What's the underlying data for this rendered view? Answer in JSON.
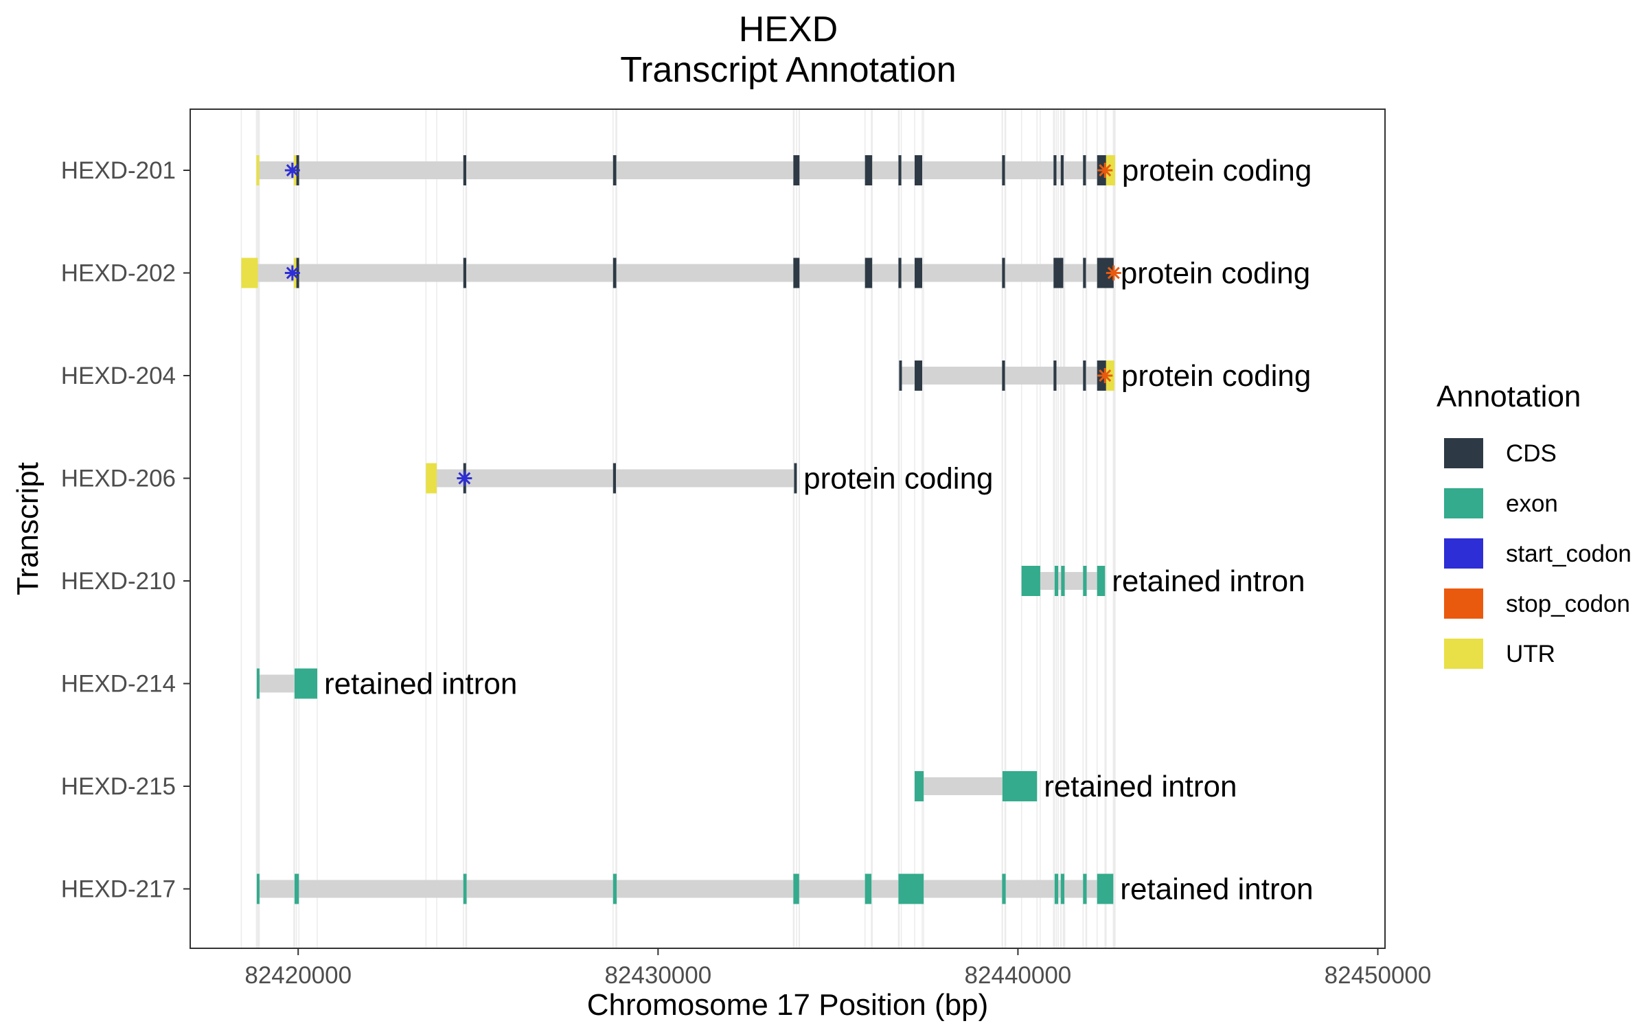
{
  "chart_data": {
    "type": "transcript-annotation",
    "title": "HEXD",
    "subtitle": "Transcript Annotation",
    "xlabel": "Chromosome 17 Position (bp)",
    "ylabel": "Transcript",
    "xlim": [
      82417000,
      82450200
    ],
    "x_ticks": [
      82420000,
      82430000,
      82440000,
      82450000
    ],
    "x_tick_labels": [
      "82420000",
      "82430000",
      "82440000",
      "82450000"
    ],
    "grid": "vertical lines at feature boundaries",
    "legend": {
      "title": "Annotation",
      "placement": "right",
      "items": [
        {
          "label": "CDS",
          "color": "#2d3a45"
        },
        {
          "label": "exon",
          "color": "#33ab8c"
        },
        {
          "label": "start_codon",
          "color": "#2e2ed6"
        },
        {
          "label": "stop_codon",
          "color": "#ea5a0e"
        },
        {
          "label": "UTR",
          "color": "#e8e046"
        }
      ]
    },
    "intron_color": "#d3d3d3",
    "transcripts": [
      {
        "name": "HEXD-217",
        "biotype": "retained intron",
        "span": [
          82418870,
          82442650
        ],
        "features": [
          {
            "type": "exon",
            "start": 82418850,
            "end": 82418900
          },
          {
            "type": "exon",
            "start": 82419900,
            "end": 82420020
          },
          {
            "type": "exon",
            "start": 82424590,
            "end": 82424680
          },
          {
            "type": "exon",
            "start": 82428750,
            "end": 82428850
          },
          {
            "type": "exon",
            "start": 82433760,
            "end": 82433920
          },
          {
            "type": "exon",
            "start": 82435750,
            "end": 82435930
          },
          {
            "type": "exon",
            "start": 82436680,
            "end": 82437380
          },
          {
            "type": "exon",
            "start": 82439560,
            "end": 82439660
          },
          {
            "type": "exon",
            "start": 82441020,
            "end": 82441120
          },
          {
            "type": "exon",
            "start": 82441190,
            "end": 82441290
          },
          {
            "type": "exon",
            "start": 82441810,
            "end": 82441910
          },
          {
            "type": "exon",
            "start": 82442200,
            "end": 82442650
          }
        ]
      },
      {
        "name": "HEXD-215",
        "biotype": "retained intron",
        "span": [
          82437140,
          82440530
        ],
        "features": [
          {
            "type": "exon",
            "start": 82437130,
            "end": 82437380
          },
          {
            "type": "exon",
            "start": 82439570,
            "end": 82440530
          }
        ]
      },
      {
        "name": "HEXD-214",
        "biotype": "retained intron",
        "span": [
          82418870,
          82420530
        ],
        "features": [
          {
            "type": "exon",
            "start": 82418850,
            "end": 82418900
          },
          {
            "type": "exon",
            "start": 82419900,
            "end": 82420530
          }
        ]
      },
      {
        "name": "HEXD-210",
        "biotype": "retained intron",
        "span": [
          82440100,
          82442420
        ],
        "features": [
          {
            "type": "exon",
            "start": 82440100,
            "end": 82440620
          },
          {
            "type": "exon",
            "start": 82441020,
            "end": 82441120
          },
          {
            "type": "exon",
            "start": 82441200,
            "end": 82441300
          },
          {
            "type": "exon",
            "start": 82441810,
            "end": 82441910
          },
          {
            "type": "exon",
            "start": 82442200,
            "end": 82442420
          }
        ]
      },
      {
        "name": "HEXD-206",
        "biotype": "protein coding",
        "span": [
          82423550,
          82433850
        ],
        "features": [
          {
            "type": "UTR",
            "start": 82423550,
            "end": 82423850
          },
          {
            "type": "CDS",
            "start": 82424590,
            "end": 82424660
          },
          {
            "type": "CDS",
            "start": 82428750,
            "end": 82428830
          },
          {
            "type": "CDS",
            "start": 82433780,
            "end": 82433850
          }
        ],
        "start_codon": 82424620
      },
      {
        "name": "HEXD-204",
        "biotype": "protein coding",
        "span": [
          82436720,
          82442680
        ],
        "features": [
          {
            "type": "CDS",
            "start": 82436700,
            "end": 82436760
          },
          {
            "type": "CDS",
            "start": 82437130,
            "end": 82437340
          },
          {
            "type": "CDS",
            "start": 82439560,
            "end": 82439640
          },
          {
            "type": "CDS",
            "start": 82440990,
            "end": 82441070
          },
          {
            "type": "CDS",
            "start": 82441810,
            "end": 82441890
          },
          {
            "type": "CDS",
            "start": 82442200,
            "end": 82442450
          },
          {
            "type": "UTR",
            "start": 82442450,
            "end": 82442680
          }
        ],
        "stop_codon": 82442420
      },
      {
        "name": "HEXD-202",
        "biotype": "protein coding",
        "span": [
          82418420,
          82442660
        ],
        "features": [
          {
            "type": "UTR",
            "start": 82418420,
            "end": 82418880
          },
          {
            "type": "UTR",
            "start": 82419880,
            "end": 82419950
          },
          {
            "type": "CDS",
            "start": 82419950,
            "end": 82420020
          },
          {
            "type": "CDS",
            "start": 82424590,
            "end": 82424670
          },
          {
            "type": "CDS",
            "start": 82428750,
            "end": 82428840
          },
          {
            "type": "CDS",
            "start": 82433760,
            "end": 82433930
          },
          {
            "type": "CDS",
            "start": 82435750,
            "end": 82435950
          },
          {
            "type": "CDS",
            "start": 82436680,
            "end": 82436760
          },
          {
            "type": "CDS",
            "start": 82437130,
            "end": 82437340
          },
          {
            "type": "CDS",
            "start": 82439560,
            "end": 82439640
          },
          {
            "type": "CDS",
            "start": 82440990,
            "end": 82441260
          },
          {
            "type": "CDS",
            "start": 82441810,
            "end": 82441890
          },
          {
            "type": "CDS",
            "start": 82442200,
            "end": 82442660
          }
        ],
        "start_codon": 82419840,
        "stop_codon": 82442660
      },
      {
        "name": "HEXD-201",
        "biotype": "protein coding",
        "span": [
          82418870,
          82442700
        ],
        "features": [
          {
            "type": "UTR",
            "start": 82418840,
            "end": 82418920
          },
          {
            "type": "UTR",
            "start": 82419880,
            "end": 82419950
          },
          {
            "type": "CDS",
            "start": 82419950,
            "end": 82420020
          },
          {
            "type": "CDS",
            "start": 82424590,
            "end": 82424670
          },
          {
            "type": "CDS",
            "start": 82428750,
            "end": 82428840
          },
          {
            "type": "CDS",
            "start": 82433760,
            "end": 82433930
          },
          {
            "type": "CDS",
            "start": 82435750,
            "end": 82435950
          },
          {
            "type": "CDS",
            "start": 82436680,
            "end": 82436760
          },
          {
            "type": "CDS",
            "start": 82437130,
            "end": 82437340
          },
          {
            "type": "CDS",
            "start": 82439560,
            "end": 82439640
          },
          {
            "type": "CDS",
            "start": 82440990,
            "end": 82441070
          },
          {
            "type": "CDS",
            "start": 82441190,
            "end": 82441270
          },
          {
            "type": "CDS",
            "start": 82441810,
            "end": 82441890
          },
          {
            "type": "CDS",
            "start": 82442200,
            "end": 82442450
          },
          {
            "type": "UTR",
            "start": 82442450,
            "end": 82442700
          }
        ],
        "start_codon": 82419840,
        "stop_codon": 82442420
      }
    ]
  }
}
